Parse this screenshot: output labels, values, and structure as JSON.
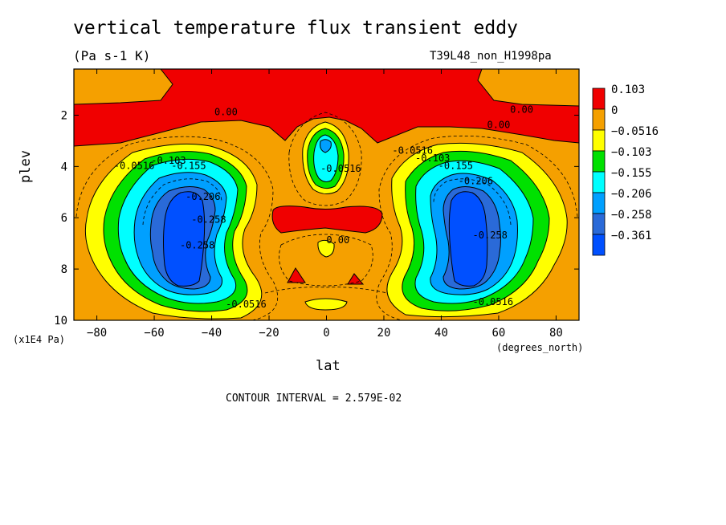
{
  "chart_data": {
    "type": "heatmap",
    "title": "vertical temperature flux transient eddy",
    "units": "(Pa s-1 K)",
    "run_label": "T39L48_non_H1998pa",
    "xlabel": "lat",
    "x_units": "(degrees_north)",
    "ylabel": "plev",
    "y_multiplier": "(x1E4 Pa)",
    "contour_interval_text": "CONTOUR INTERVAL = 2.579E-02",
    "xlim": [
      -88,
      88
    ],
    "ylim": [
      10,
      0.2
    ],
    "x_ticks": [
      -80,
      -60,
      -40,
      -20,
      0,
      20,
      40,
      60,
      80
    ],
    "x_tick_labels": [
      "−80",
      "−60",
      "−40",
      "−20",
      "0",
      "20",
      "40",
      "60",
      "80"
    ],
    "y_ticks": [
      2,
      4,
      6,
      8,
      10
    ],
    "y_tick_labels": [
      "2",
      "4",
      "6",
      "8",
      "10"
    ],
    "levels": [
      {
        "label": "0.103",
        "color": "#f00000"
      },
      {
        "label": "0",
        "color": "#f5a000"
      },
      {
        "label": "−0.0516",
        "color": "#ffff00"
      },
      {
        "label": "−0.103",
        "color": "#00e100"
      },
      {
        "label": "−0.155",
        "color": "#00ffff"
      },
      {
        "label": "−0.206",
        "color": "#00a0ff"
      },
      {
        "label": "−0.258",
        "color": "#2a6ad8"
      },
      {
        "label": "−0.361",
        "color": "#0050ff"
      }
    ],
    "contour_labels": [
      {
        "text": "0.00",
        "x": -35,
        "y": 2.0
      },
      {
        "text": "0.00",
        "x": 68,
        "y": 1.9
      },
      {
        "text": "0.00",
        "x": 60,
        "y": 2.5
      },
      {
        "text": "0.00",
        "x": 4,
        "y": 7.0
      },
      {
        "text": "-0.0516",
        "x": -67,
        "y": 4.1
      },
      {
        "text": "-0.103",
        "x": -55,
        "y": 3.9
      },
      {
        "text": "-0.155",
        "x": -48,
        "y": 4.1
      },
      {
        "text": "-0.206",
        "x": -43,
        "y": 5.3
      },
      {
        "text": "-0.258",
        "x": -41,
        "y": 6.2
      },
      {
        "text": "-0.258",
        "x": -45,
        "y": 7.2
      },
      {
        "text": "-0.0516",
        "x": -28,
        "y": 9.5
      },
      {
        "text": "-0.0516",
        "x": 5,
        "y": 4.2
      },
      {
        "text": "-0.0516",
        "x": 30,
        "y": 3.5
      },
      {
        "text": "-0.103",
        "x": 37,
        "y": 3.8
      },
      {
        "text": "-0.155",
        "x": 45,
        "y": 4.1
      },
      {
        "text": "-0.206",
        "x": 52,
        "y": 4.7
      },
      {
        "text": "-0.258",
        "x": 57,
        "y": 6.8
      },
      {
        "text": "-0.0516",
        "x": 58,
        "y": 9.4
      }
    ]
  }
}
